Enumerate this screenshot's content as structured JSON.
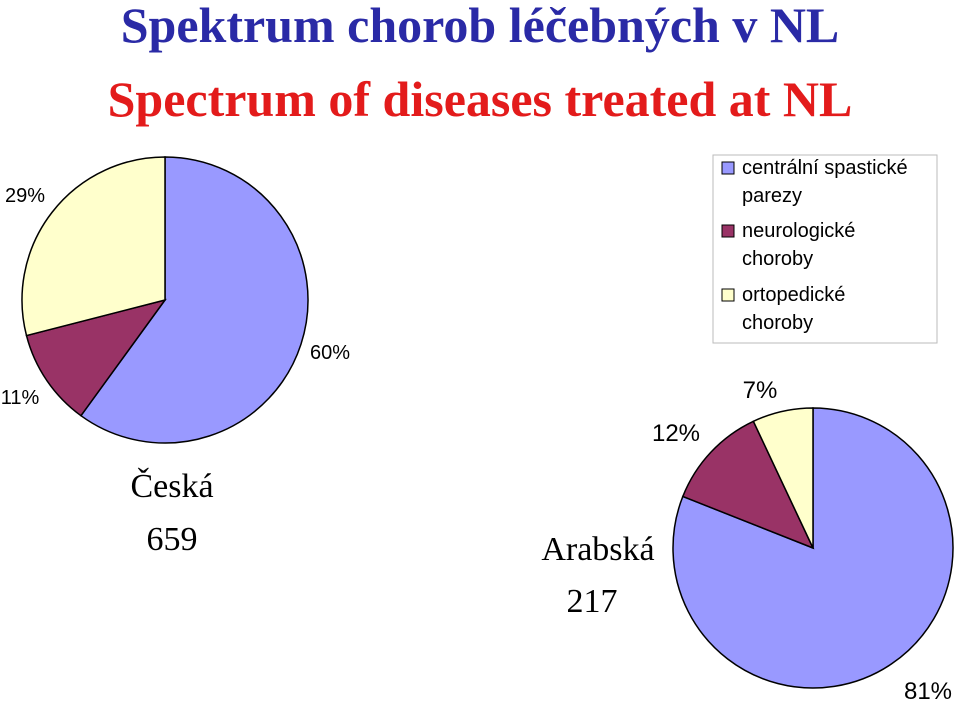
{
  "title": "Spektrum chorob léčebných v NL",
  "subtitle": "Spectrum of diseases treated at NL",
  "legend": {
    "categories": [
      "centrální spastické parezy",
      "neurologické choroby",
      "ortopedické choroby"
    ],
    "colors": [
      "#9999ff",
      "#993366",
      "#ffffcc"
    ]
  },
  "chart_data": [
    {
      "type": "pie",
      "title": "Česká",
      "total": 659,
      "values": [
        60,
        11,
        29
      ],
      "value_labels": [
        "60%",
        "11%",
        "29%"
      ]
    },
    {
      "type": "pie",
      "title": "Arabská",
      "total": 217,
      "values": [
        81,
        12,
        7
      ],
      "value_labels": [
        "81%",
        "12%",
        "7%"
      ]
    }
  ]
}
